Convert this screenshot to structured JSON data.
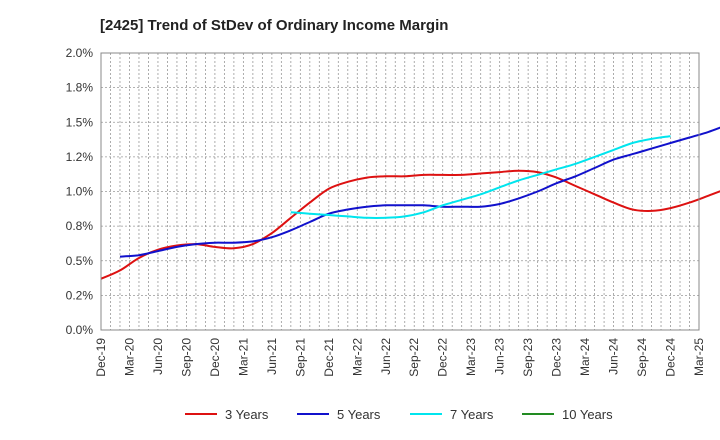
{
  "chart_data": {
    "type": "line",
    "title": "[2425]  Trend of StDev of Ordinary Income Margin",
    "xlabel": "",
    "ylabel": "",
    "x_ticks": [
      "Dec-19",
      "Mar-20",
      "Jun-20",
      "Sep-20",
      "Dec-20",
      "Mar-21",
      "Jun-21",
      "Sep-21",
      "Dec-21",
      "Mar-22",
      "Jun-22",
      "Sep-22",
      "Dec-22",
      "Mar-23",
      "Jun-23",
      "Sep-23",
      "Dec-23",
      "Mar-24",
      "Jun-24",
      "Sep-24",
      "Dec-24",
      "Mar-25"
    ],
    "y_ticks": [
      "0.0%",
      "0.2%",
      "0.5%",
      "0.8%",
      "1.0%",
      "1.2%",
      "1.5%",
      "1.8%",
      "2.0%"
    ],
    "ylim": [
      0,
      2.0
    ],
    "grid": true,
    "legend_position": "bottom",
    "series": [
      {
        "name": "3 Years",
        "color": "#dd1111",
        "start_index": 0,
        "values": [
          0.37,
          0.43,
          0.52,
          0.58,
          0.61,
          0.62,
          0.6,
          0.59,
          0.62,
          0.7,
          0.81,
          0.92,
          1.02,
          1.07,
          1.1,
          1.11,
          1.11,
          1.12,
          1.12,
          1.12,
          1.13,
          1.14,
          1.15,
          1.14,
          1.1,
          1.04,
          0.98,
          0.92,
          0.87,
          0.86,
          0.88,
          0.92,
          0.97,
          1.02,
          1.06,
          1.08,
          1.08
        ]
      },
      {
        "name": "5 Years",
        "color": "#1111cc",
        "start_index": 1,
        "values": [
          0.53,
          0.54,
          0.57,
          0.6,
          0.62,
          0.63,
          0.63,
          0.64,
          0.67,
          0.72,
          0.78,
          0.84,
          0.87,
          0.89,
          0.9,
          0.9,
          0.9,
          0.89,
          0.89,
          0.89,
          0.91,
          0.95,
          1.0,
          1.06,
          1.11,
          1.17,
          1.23,
          1.27,
          1.31,
          1.35,
          1.39,
          1.43,
          1.48,
          1.52,
          1.55,
          1.56
        ]
      },
      {
        "name": "7 Years",
        "color": "#00e5ee",
        "start_index": 10,
        "values": [
          0.85,
          0.84,
          0.83,
          0.82,
          0.81,
          0.81,
          0.82,
          0.85,
          0.9,
          0.94,
          0.98,
          1.03,
          1.08,
          1.12,
          1.16,
          1.2,
          1.25,
          1.3,
          1.35,
          1.38,
          1.4
        ]
      },
      {
        "name": "10 Years",
        "color": "#228b22",
        "start_index": 0,
        "values": []
      }
    ]
  }
}
